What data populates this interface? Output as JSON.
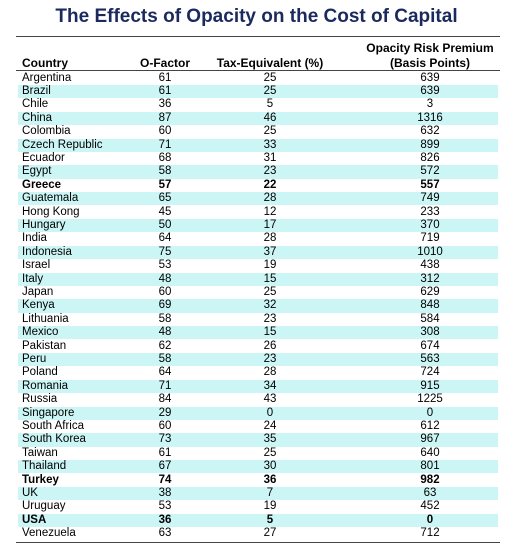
{
  "title": "The Effects of Opacity on the Cost of Capital",
  "columns": [
    "Country",
    "O-Factor",
    "Tax-Equivalent (%)",
    [
      "Opacity Risk Premium",
      "(Basis Points)"
    ]
  ],
  "bold_rows": [
    8,
    30,
    33
  ],
  "rows": [
    [
      "Argentina",
      61,
      25,
      639
    ],
    [
      "Brazil",
      61,
      25,
      639
    ],
    [
      "Chile",
      36,
      5,
      3
    ],
    [
      "China",
      87,
      46,
      1316
    ],
    [
      "Colombia",
      60,
      25,
      632
    ],
    [
      "Czech Republic",
      71,
      33,
      899
    ],
    [
      "Ecuador",
      68,
      31,
      826
    ],
    [
      "Egypt",
      58,
      23,
      572
    ],
    [
      "Greece",
      57,
      22,
      557
    ],
    [
      "Guatemala",
      65,
      28,
      749
    ],
    [
      "Hong Kong",
      45,
      12,
      233
    ],
    [
      "Hungary",
      50,
      17,
      370
    ],
    [
      "India",
      64,
      28,
      719
    ],
    [
      "Indonesia",
      75,
      37,
      1010
    ],
    [
      "Israel",
      53,
      19,
      438
    ],
    [
      "Italy",
      48,
      15,
      312
    ],
    [
      "Japan",
      60,
      25,
      629
    ],
    [
      "Kenya",
      69,
      32,
      848
    ],
    [
      "Lithuania",
      58,
      23,
      584
    ],
    [
      "Mexico",
      48,
      15,
      308
    ],
    [
      "Pakistan",
      62,
      26,
      674
    ],
    [
      "Peru",
      58,
      23,
      563
    ],
    [
      "Poland",
      64,
      28,
      724
    ],
    [
      "Romania",
      71,
      34,
      915
    ],
    [
      "Russia",
      84,
      43,
      1225
    ],
    [
      "Singapore",
      29,
      0,
      0
    ],
    [
      "South Africa",
      60,
      24,
      612
    ],
    [
      "South Korea",
      73,
      35,
      967
    ],
    [
      "Taiwan",
      61,
      25,
      640
    ],
    [
      "Thailand",
      67,
      30,
      801
    ],
    [
      "Turkey",
      74,
      36,
      982
    ],
    [
      "UK",
      38,
      7,
      63
    ],
    [
      "Uruguay",
      53,
      19,
      452
    ],
    [
      "USA",
      36,
      5,
      0
    ],
    [
      "Venezuela",
      63,
      27,
      712
    ]
  ]
}
